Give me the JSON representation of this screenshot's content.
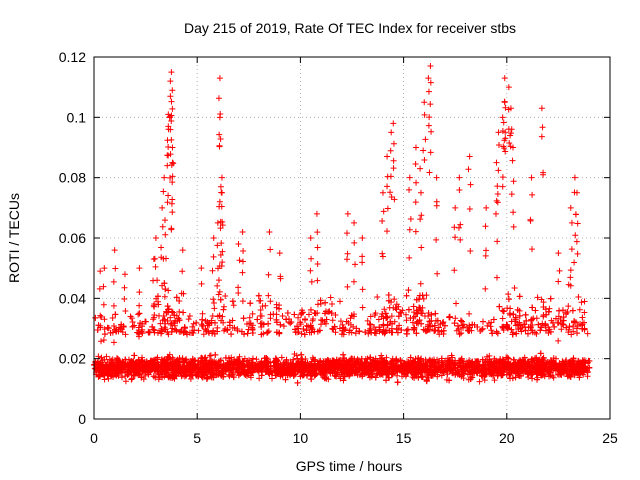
{
  "chart_data": {
    "type": "scatter",
    "title": "Day 215 of 2019, Rate Of TEC Index for receiver stbs",
    "xlabel": "GPS time / hours",
    "ylabel": "ROTI / TECUs",
    "xlim": [
      0,
      25
    ],
    "ylim": [
      0,
      0.12
    ],
    "x_ticks": [
      "0",
      "5",
      "10",
      "15",
      "20",
      "25"
    ],
    "y_ticks": [
      "0",
      "0.02",
      "0.04",
      "0.06",
      "0.08",
      "0.1",
      "0.12"
    ],
    "grid": true,
    "marker": "+",
    "color": "#ff0000",
    "series": [
      {
        "name": "ROTI",
        "description": "dense ROTI samples every ~30 s from 0 to 24 h; bulk values 0.005-0.03 TECU/min with spikes",
        "x_range": [
          0,
          24
        ],
        "bulk_range": [
          0.005,
          0.03
        ],
        "spikes": [
          {
            "x": 0.3,
            "y": 0.049
          },
          {
            "x": 0.5,
            "y": 0.05
          },
          {
            "x": 1.0,
            "y": 0.056
          },
          {
            "x": 1.5,
            "y": 0.048
          },
          {
            "x": 2.2,
            "y": 0.05
          },
          {
            "x": 2.9,
            "y": 0.053
          },
          {
            "x": 3.0,
            "y": 0.06
          },
          {
            "x": 3.3,
            "y": 0.07
          },
          {
            "x": 3.4,
            "y": 0.08
          },
          {
            "x": 3.6,
            "y": 0.097
          },
          {
            "x": 3.6,
            "y": 0.101
          },
          {
            "x": 3.7,
            "y": 0.107
          },
          {
            "x": 3.7,
            "y": 0.112
          },
          {
            "x": 3.75,
            "y": 0.115
          },
          {
            "x": 3.8,
            "y": 0.09
          },
          {
            "x": 3.8,
            "y": 0.085
          },
          {
            "x": 4.3,
            "y": 0.056
          },
          {
            "x": 5.2,
            "y": 0.05
          },
          {
            "x": 5.8,
            "y": 0.06
          },
          {
            "x": 6.0,
            "y": 0.065
          },
          {
            "x": 6.1,
            "y": 0.072
          },
          {
            "x": 6.2,
            "y": 0.075
          },
          {
            "x": 6.2,
            "y": 0.08
          },
          {
            "x": 6.1,
            "y": 0.1
          },
          {
            "x": 6.1,
            "y": 0.113
          },
          {
            "x": 7.0,
            "y": 0.058
          },
          {
            "x": 7.2,
            "y": 0.062
          },
          {
            "x": 8.5,
            "y": 0.062
          },
          {
            "x": 9.0,
            "y": 0.055
          },
          {
            "x": 10.5,
            "y": 0.06
          },
          {
            "x": 10.8,
            "y": 0.068
          },
          {
            "x": 12.3,
            "y": 0.068
          },
          {
            "x": 12.6,
            "y": 0.065
          },
          {
            "x": 13.0,
            "y": 0.06
          },
          {
            "x": 14.0,
            "y": 0.075
          },
          {
            "x": 14.2,
            "y": 0.087
          },
          {
            "x": 14.4,
            "y": 0.095
          },
          {
            "x": 14.5,
            "y": 0.098
          },
          {
            "x": 15.3,
            "y": 0.08
          },
          {
            "x": 15.6,
            "y": 0.09
          },
          {
            "x": 15.8,
            "y": 0.083
          },
          {
            "x": 16.0,
            "y": 0.105
          },
          {
            "x": 16.2,
            "y": 0.113
          },
          {
            "x": 16.3,
            "y": 0.117
          },
          {
            "x": 16.6,
            "y": 0.08
          },
          {
            "x": 17.5,
            "y": 0.07
          },
          {
            "x": 17.7,
            "y": 0.08
          },
          {
            "x": 18.2,
            "y": 0.087
          },
          {
            "x": 19.0,
            "y": 0.07
          },
          {
            "x": 19.5,
            "y": 0.085
          },
          {
            "x": 19.6,
            "y": 0.095
          },
          {
            "x": 19.8,
            "y": 0.1
          },
          {
            "x": 19.9,
            "y": 0.105
          },
          {
            "x": 19.9,
            "y": 0.113
          },
          {
            "x": 20.1,
            "y": 0.11
          },
          {
            "x": 20.2,
            "y": 0.103
          },
          {
            "x": 20.3,
            "y": 0.09
          },
          {
            "x": 21.2,
            "y": 0.08
          },
          {
            "x": 21.7,
            "y": 0.103
          },
          {
            "x": 22.5,
            "y": 0.055
          },
          {
            "x": 23.1,
            "y": 0.07
          },
          {
            "x": 23.3,
            "y": 0.08
          },
          {
            "x": 23.4,
            "y": 0.075
          }
        ]
      }
    ]
  }
}
